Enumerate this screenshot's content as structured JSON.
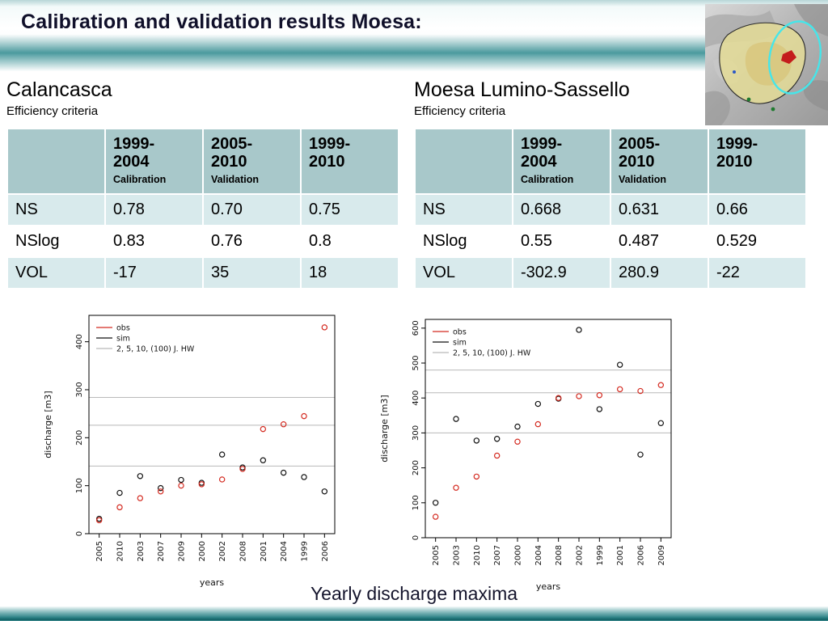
{
  "slide": {
    "title": "Calibration and validation results Moesa:",
    "caption": "Yearly discharge maxima"
  },
  "sections": [
    {
      "title": "Calancasca",
      "subtitle": "Efficiency criteria",
      "table": {
        "columns": [
          {
            "range": "1999-\n2004",
            "sub": "Calibration"
          },
          {
            "range": "2005-\n2010",
            "sub": "Validation"
          },
          {
            "range": "1999-\n2010",
            "sub": ""
          }
        ],
        "rows": [
          {
            "label": "NS",
            "values": [
              "0.78",
              "0.70",
              "0.75"
            ]
          },
          {
            "label": "NSlog",
            "values": [
              "0.83",
              "0.76",
              "0.8"
            ]
          },
          {
            "label": "VOL",
            "values": [
              "-17",
              "35",
              "18"
            ]
          }
        ]
      }
    },
    {
      "title": "Moesa Lumino-Sassello",
      "subtitle": "Efficiency criteria",
      "table": {
        "columns": [
          {
            "range": "1999-\n2004",
            "sub": "Calibration"
          },
          {
            "range": "2005-\n2010",
            "sub": "Validation"
          },
          {
            "range": "1999-\n2010",
            "sub": ""
          }
        ],
        "rows": [
          {
            "label": "NS",
            "values": [
              "0.668",
              "0.631",
              "0.66"
            ]
          },
          {
            "label": "NSlog",
            "values": [
              "0.55",
              "0.487",
              "0.529"
            ]
          },
          {
            "label": "VOL",
            "values": [
              "-302.9",
              "280.9",
              "-22"
            ]
          }
        ]
      }
    }
  ],
  "chart_data": [
    {
      "type": "scatter",
      "title": "Calancasca yearly discharge maxima",
      "xlabel": "years",
      "ylabel": "discharge [m3]",
      "ylim": [
        0,
        455
      ],
      "yticks": [
        0,
        100,
        200,
        300,
        400
      ],
      "grid": false,
      "legend_position": "top-left",
      "x_categories": [
        "2005",
        "2010",
        "2003",
        "2007",
        "2009",
        "2000",
        "2002",
        "2008",
        "2001",
        "2004",
        "1999",
        "2006"
      ],
      "series": [
        {
          "name": "obs",
          "color": "#d42a20",
          "values": [
            28,
            55,
            74,
            88,
            100,
            103,
            113,
            135,
            218,
            228,
            245,
            430
          ]
        },
        {
          "name": "sim",
          "color": "#111111",
          "values": [
            31,
            85,
            120,
            95,
            112,
            106,
            165,
            138,
            153,
            127,
            118,
            88
          ]
        }
      ],
      "threshold_lines": {
        "label": "2, 5, 10, (100) J. HW",
        "color": "#b9b9b9",
        "values": [
          141,
          226,
          284
        ]
      }
    },
    {
      "type": "scatter",
      "title": "Moesa Lumino-Sassello yearly discharge maxima",
      "xlabel": "years",
      "ylabel": "discharge [m3]",
      "ylim": [
        0,
        625
      ],
      "yticks": [
        0,
        100,
        200,
        300,
        400,
        500,
        600
      ],
      "grid": false,
      "legend_position": "top-left",
      "x_categories": [
        "2005",
        "2003",
        "2010",
        "2007",
        "2000",
        "2004",
        "2008",
        "2002",
        "1999",
        "2001",
        "2006",
        "2009"
      ],
      "series": [
        {
          "name": "obs",
          "color": "#d42a20",
          "values": [
            60,
            143,
            175,
            235,
            275,
            325,
            400,
            405,
            408,
            425,
            420,
            437
          ]
        },
        {
          "name": "sim",
          "color": "#111111",
          "values": [
            100,
            340,
            278,
            283,
            318,
            383,
            398,
            595,
            368,
            495,
            238,
            328
          ]
        }
      ],
      "threshold_lines": {
        "label": "2, 5, 10, (100) J. HW",
        "color": "#b9b9b9",
        "values": [
          300,
          415,
          480
        ]
      }
    }
  ]
}
